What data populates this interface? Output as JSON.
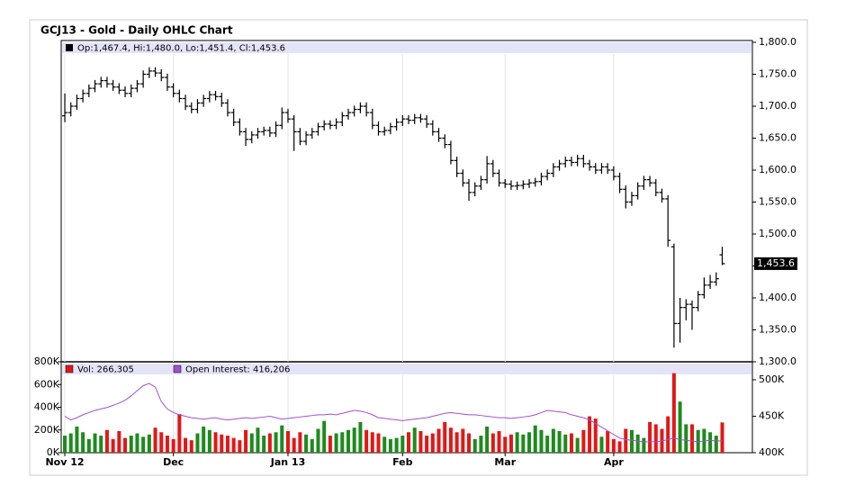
{
  "chart_data": {
    "type": "ohlc",
    "title": "GCJ13 - Gold - Daily OHLC Chart",
    "legend": "Op:1,467.4, Hi:1,480.0, Lo:1,451.4, Cl:1,453.6",
    "last_label": "1,453.6",
    "bar_color": "#000000",
    "xlim": [
      -0.6,
      114
    ],
    "xticks": [
      {
        "value": 0,
        "label": "Nov 12"
      },
      {
        "value": 18,
        "label": "Dec"
      },
      {
        "value": 37,
        "label": "Jan 13"
      },
      {
        "value": 56,
        "label": "Feb"
      },
      {
        "value": 73,
        "label": "Mar"
      },
      {
        "value": 91,
        "label": "Apr"
      }
    ],
    "grid": true,
    "ylim": [
      1300,
      1800
    ],
    "yticks": [
      {
        "value": 1300,
        "label": "1,300.0"
      },
      {
        "value": 1350,
        "label": "1,350.0"
      },
      {
        "value": 1400,
        "label": "1,400.0"
      },
      {
        "value": 1450,
        "label": "1,450.0"
      },
      {
        "value": 1500,
        "label": "1,500.0"
      },
      {
        "value": 1550,
        "label": "1,550.0"
      },
      {
        "value": 1600,
        "label": "1,600.0"
      },
      {
        "value": 1650,
        "label": "1,650.0"
      },
      {
        "value": 1700,
        "label": "1,700.0"
      },
      {
        "value": 1750,
        "label": "1,750.0"
      },
      {
        "value": 1800,
        "label": "1,800.0"
      }
    ],
    "open": [
      1685,
      1690,
      1700,
      1712,
      1720,
      1728,
      1735,
      1740,
      1735,
      1730,
      1725,
      1720,
      1728,
      1735,
      1750,
      1755,
      1752,
      1745,
      1730,
      1720,
      1712,
      1700,
      1695,
      1705,
      1712,
      1718,
      1715,
      1705,
      1690,
      1675,
      1660,
      1648,
      1655,
      1660,
      1662,
      1658,
      1670,
      1690,
      1680,
      1660,
      1645,
      1655,
      1660,
      1668,
      1672,
      1670,
      1675,
      1685,
      1690,
      1695,
      1700,
      1690,
      1670,
      1660,
      1662,
      1668,
      1675,
      1680,
      1678,
      1682,
      1680,
      1672,
      1660,
      1650,
      1640,
      1615,
      1595,
      1580,
      1565,
      1575,
      1585,
      1610,
      1595,
      1580,
      1578,
      1575,
      1576,
      1578,
      1580,
      1582,
      1590,
      1595,
      1605,
      1610,
      1615,
      1612,
      1618,
      1610,
      1605,
      1600,
      1605,
      1600,
      1590,
      1570,
      1550,
      1560,
      1575,
      1585,
      1580,
      1565,
      1555,
      1480,
      1360,
      1385,
      1390,
      1385,
      1405,
      1420,
      1425,
      1467.4
    ],
    "high": [
      1720,
      1706,
      1718,
      1726,
      1734,
      1741,
      1746,
      1746,
      1741,
      1736,
      1731,
      1734,
      1741,
      1756,
      1761,
      1761,
      1758,
      1751,
      1736,
      1726,
      1718,
      1706,
      1711,
      1718,
      1724,
      1724,
      1721,
      1711,
      1696,
      1681,
      1666,
      1661,
      1666,
      1668,
      1668,
      1676,
      1698,
      1696,
      1686,
      1666,
      1661,
      1666,
      1674,
      1678,
      1678,
      1681,
      1691,
      1696,
      1701,
      1706,
      1706,
      1696,
      1676,
      1668,
      1674,
      1681,
      1686,
      1686,
      1688,
      1688,
      1686,
      1678,
      1666,
      1656,
      1646,
      1621,
      1601,
      1586,
      1581,
      1591,
      1622,
      1616,
      1601,
      1586,
      1584,
      1582,
      1584,
      1586,
      1588,
      1596,
      1601,
      1611,
      1616,
      1621,
      1621,
      1624,
      1624,
      1616,
      1611,
      1611,
      1611,
      1606,
      1596,
      1576,
      1566,
      1581,
      1591,
      1591,
      1586,
      1571,
      1561,
      1485,
      1400,
      1398,
      1396,
      1411,
      1432,
      1436,
      1440,
      1480
    ],
    "low": [
      1675,
      1684,
      1694,
      1706,
      1714,
      1722,
      1729,
      1729,
      1724,
      1719,
      1714,
      1714,
      1722,
      1729,
      1744,
      1746,
      1739,
      1724,
      1714,
      1706,
      1694,
      1689,
      1689,
      1699,
      1706,
      1709,
      1699,
      1684,
      1669,
      1654,
      1638,
      1642,
      1649,
      1654,
      1652,
      1652,
      1664,
      1674,
      1630,
      1639,
      1639,
      1649,
      1654,
      1662,
      1664,
      1664,
      1669,
      1679,
      1684,
      1689,
      1684,
      1664,
      1654,
      1654,
      1656,
      1662,
      1669,
      1672,
      1672,
      1674,
      1666,
      1654,
      1644,
      1634,
      1609,
      1589,
      1574,
      1552,
      1559,
      1569,
      1579,
      1589,
      1574,
      1572,
      1569,
      1569,
      1570,
      1572,
      1574,
      1576,
      1584,
      1589,
      1599,
      1604,
      1606,
      1606,
      1604,
      1599,
      1594,
      1594,
      1594,
      1584,
      1564,
      1540,
      1544,
      1554,
      1569,
      1574,
      1559,
      1549,
      1480,
      1322,
      1330,
      1365,
      1350,
      1379,
      1399,
      1414,
      1419,
      1451.4
    ],
    "close": [
      1690,
      1700,
      1712,
      1720,
      1728,
      1735,
      1740,
      1735,
      1730,
      1725,
      1720,
      1728,
      1735,
      1750,
      1755,
      1752,
      1745,
      1730,
      1720,
      1712,
      1700,
      1695,
      1705,
      1712,
      1718,
      1715,
      1705,
      1690,
      1675,
      1660,
      1648,
      1655,
      1660,
      1662,
      1658,
      1670,
      1690,
      1680,
      1660,
      1645,
      1655,
      1660,
      1668,
      1672,
      1670,
      1675,
      1685,
      1690,
      1695,
      1700,
      1690,
      1670,
      1660,
      1662,
      1668,
      1675,
      1680,
      1678,
      1682,
      1680,
      1672,
      1660,
      1650,
      1640,
      1615,
      1595,
      1580,
      1565,
      1575,
      1585,
      1610,
      1595,
      1580,
      1578,
      1575,
      1576,
      1578,
      1580,
      1582,
      1590,
      1595,
      1605,
      1610,
      1615,
      1612,
      1618,
      1610,
      1605,
      1600,
      1605,
      1600,
      1590,
      1570,
      1550,
      1560,
      1575,
      1585,
      1580,
      1565,
      1555,
      1490,
      1360,
      1385,
      1390,
      1385,
      1405,
      1420,
      1425,
      1430,
      1453.6
    ],
    "volume": {
      "legend": "Vol: 266,305",
      "up_color": "#1e8a1e",
      "down_color": "#e01818",
      "ylim": [
        0,
        800000
      ],
      "yticks": [
        {
          "value": 0,
          "label": "0K"
        },
        {
          "value": 200000,
          "label": "200K"
        },
        {
          "value": 400000,
          "label": "400K"
        },
        {
          "value": 600000,
          "label": "600K"
        },
        {
          "value": 800000,
          "label": "800K"
        }
      ],
      "values": [
        150000,
        170000,
        230000,
        180000,
        120000,
        170000,
        150000,
        200000,
        120000,
        190000,
        130000,
        150000,
        170000,
        140000,
        160000,
        220000,
        180000,
        150000,
        120000,
        340000,
        130000,
        110000,
        170000,
        230000,
        200000,
        180000,
        160000,
        150000,
        130000,
        110000,
        200000,
        170000,
        220000,
        150000,
        170000,
        180000,
        240000,
        190000,
        130000,
        180000,
        160000,
        120000,
        210000,
        280000,
        150000,
        170000,
        180000,
        200000,
        220000,
        270000,
        200000,
        180000,
        170000,
        140000,
        120000,
        130000,
        150000,
        180000,
        220000,
        190000,
        150000,
        170000,
        210000,
        270000,
        220000,
        180000,
        210000,
        170000,
        120000,
        150000,
        230000,
        170000,
        190000,
        140000,
        160000,
        180000,
        160000,
        180000,
        240000,
        200000,
        150000,
        210000,
        190000,
        160000,
        170000,
        130000,
        200000,
        320000,
        300000,
        140000,
        190000,
        120000,
        100000,
        210000,
        200000,
        160000,
        130000,
        270000,
        250000,
        210000,
        320000,
        700000,
        450000,
        250000,
        250000,
        200000,
        210000,
        180000,
        150000,
        266305
      ]
    },
    "open_interest": {
      "legend": "Open Interest: 416,206",
      "color": "#a050d0",
      "y2lim": [
        400000,
        500000
      ],
      "y2ticks": [
        {
          "value": 400000,
          "label": "400K"
        },
        {
          "value": 450000,
          "label": "450K"
        },
        {
          "value": 500000,
          "label": "500K"
        }
      ],
      "values": [
        450000,
        445000,
        448000,
        452000,
        455000,
        458000,
        460000,
        462000,
        465000,
        468000,
        472000,
        478000,
        485000,
        492000,
        495000,
        490000,
        470000,
        460000,
        455000,
        452000,
        450000,
        448000,
        447000,
        446000,
        447000,
        448000,
        446000,
        445000,
        446000,
        447000,
        448000,
        447000,
        448000,
        449000,
        450000,
        448000,
        446000,
        447000,
        448000,
        449000,
        450000,
        451000,
        452000,
        452000,
        453000,
        452000,
        454000,
        456000,
        458000,
        457000,
        455000,
        452000,
        448000,
        447000,
        446000,
        445000,
        444000,
        445000,
        446000,
        447000,
        448000,
        450000,
        452000,
        454000,
        455000,
        454000,
        453000,
        452000,
        452000,
        451000,
        450000,
        449000,
        448000,
        448000,
        447000,
        448000,
        449000,
        450000,
        452000,
        455000,
        458000,
        457000,
        456000,
        455000,
        452000,
        450000,
        448000,
        445000,
        440000,
        435000,
        430000,
        425000,
        420000,
        418000,
        417000,
        416000,
        415000,
        415000,
        415000,
        416000,
        418000,
        420000,
        418000,
        417000,
        416000,
        415000,
        416000,
        417000,
        416000,
        416206
      ]
    }
  }
}
